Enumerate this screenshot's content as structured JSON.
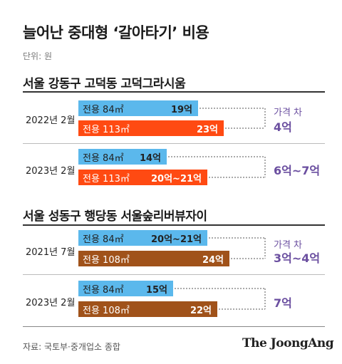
{
  "title": "늘어난 중대형 ‘갈아타기’ 비용",
  "unit": "단위: 원",
  "source": "자료: 국토부·중개업소 종합",
  "brand": "The JoongAng",
  "colors": {
    "light_blue": "#5bb8ec",
    "red_orange": "#ff4a12",
    "brown": "#a0521a",
    "gap_purple": "#6b4fa0"
  },
  "chart_data": {
    "type": "bar",
    "orientation": "horizontal",
    "title": "늘어난 중대형 ‘갈아타기’ 비용",
    "unit": "억 원",
    "groups": [
      {
        "section": "서울 강동구 고덕동 고덕그라시움",
        "period": "2022년 2월",
        "bars": [
          {
            "label": "전용 84㎡",
            "value_text": "19억",
            "value": 19
          },
          {
            "label": "전용 113㎡",
            "value_text": "23억",
            "value": 23
          }
        ],
        "gap_label": "가격 차",
        "gap_value": "4억"
      },
      {
        "section": "서울 강동구 고덕동 고덕그라시움",
        "period": "2023년 2월",
        "bars": [
          {
            "label": "전용 84㎡",
            "value_text": "14억",
            "value": 14
          },
          {
            "label": "전용 113㎡",
            "value_text": "20억~21억",
            "value": 20.5
          }
        ],
        "gap_label": "",
        "gap_value": "6억~7억"
      },
      {
        "section": "서울 성동구 행당동 서울숲리버뷰자이",
        "period": "2021년 7월",
        "bars": [
          {
            "label": "전용 84㎡",
            "value_text": "20억~21억",
            "value": 20.5
          },
          {
            "label": "전용 108㎡",
            "value_text": "24억",
            "value": 24
          }
        ],
        "gap_label": "가격 차",
        "gap_value": "3억~4억"
      },
      {
        "section": "서울 성동구 행당동 서울숲리버뷰자이",
        "period": "2023년 2월",
        "bars": [
          {
            "label": "전용 84㎡",
            "value_text": "15억",
            "value": 15
          },
          {
            "label": "전용 108㎡",
            "value_text": "22억",
            "value": 22
          }
        ],
        "gap_label": "",
        "gap_value": "7억"
      }
    ]
  }
}
